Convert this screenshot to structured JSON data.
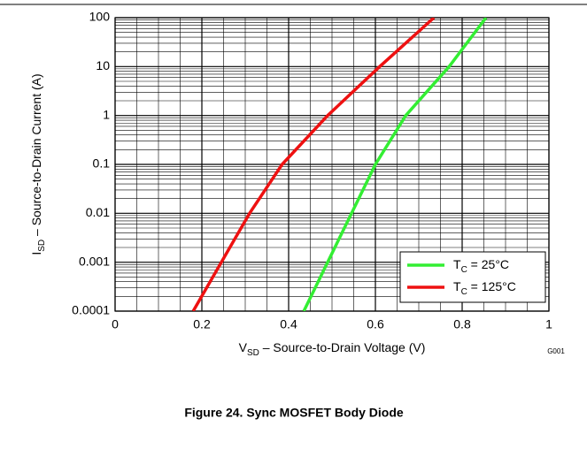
{
  "chart_data": {
    "type": "line",
    "log_y": true,
    "grid": true,
    "legend": "lower right",
    "x_label": {
      "base": "V",
      "sub": "SD",
      "rest": " – Source-to-Drain Voltage (V)"
    },
    "y_label": {
      "base": "I",
      "sub": "SD",
      "rest": " – Source-to-Drain Current (A)"
    },
    "xlim": [
      0,
      1
    ],
    "xticks": [
      0,
      0.2,
      0.4,
      0.6,
      0.8,
      1
    ],
    "ylim": [
      0.0001,
      100
    ],
    "yticks": [
      100,
      10,
      1,
      0.1,
      0.01,
      0.001,
      0.0001
    ],
    "series": [
      {
        "name": {
          "base": "T",
          "sub": "C",
          "rest": " = 25°C"
        },
        "color": "#33ee33",
        "x": [
          0.435,
          0.49,
          0.545,
          0.6,
          0.67,
          0.77,
          0.855
        ],
        "values": [
          0.0001,
          0.001,
          0.01,
          0.1,
          1,
          10,
          100
        ]
      },
      {
        "name": {
          "base": "T",
          "sub": "C",
          "rest": " = 125°C"
        },
        "color": "#ee1111",
        "x": [
          0.18,
          0.245,
          0.31,
          0.385,
          0.49,
          0.61,
          0.735
        ],
        "values": [
          0.0001,
          0.001,
          0.01,
          0.1,
          1,
          10,
          100
        ]
      }
    ],
    "code": "G001",
    "caption": "Figure 24. Sync MOSFET Body Diode"
  }
}
